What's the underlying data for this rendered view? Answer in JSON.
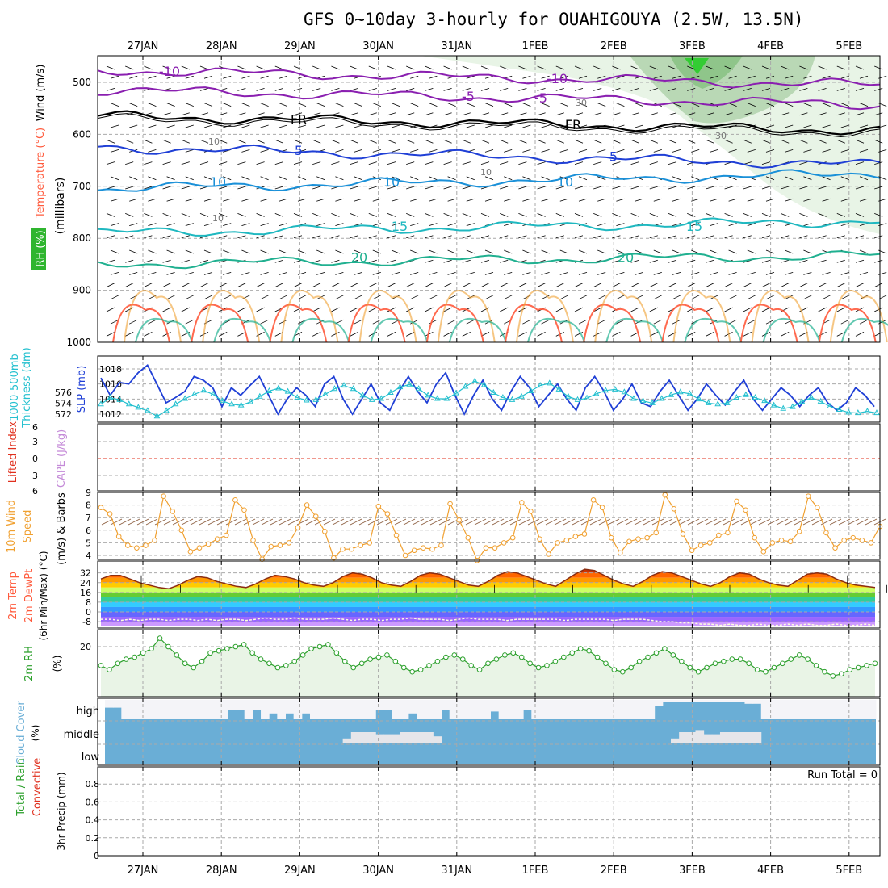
{
  "title": "GFS 0~10day 3-hourly for OUAHIGOUYA (2.5W, 13.5N)",
  "dates": [
    "27JAN",
    "28JAN",
    "29JAN",
    "30JAN",
    "31JAN",
    "1FEB",
    "2FEB",
    "3FEB",
    "4FEB",
    "5FEB"
  ],
  "colors": {
    "grid": "#a9a9a9",
    "rh": "#2fb52f",
    "temp": "#ff5a3c",
    "wind": "#000000",
    "thickness": "#23c0cf",
    "slp": "#1f3fd6",
    "lifted": "#e0301e",
    "cape": "#c48ad8",
    "wind10": "#f0a030",
    "rh2m": "#2ca02c",
    "cloud": "#6aaed6",
    "cloud_clear": "#f4f4f8",
    "precip_total": "#2ca02c",
    "precip_conv": "#e0301e"
  },
  "chart_data": [
    {
      "panel": "upper_air",
      "type": "heatmap",
      "ylabel_parts": [
        "RH (%)",
        "Temperature (°C)",
        "Wind (m/s)",
        "(millibars)"
      ],
      "y_ticks": [
        500,
        600,
        700,
        800,
        900,
        1000
      ],
      "ylim": [
        1000,
        450
      ],
      "freezing_label": "FR",
      "temperature_contours": [
        {
          "label": "-10",
          "level_mb": 477,
          "color": "#8a1fb0"
        },
        {
          "label": "-5",
          "level_mb": 515,
          "color": "#8a1fb0"
        },
        {
          "label": "FR",
          "level_mb": 565,
          "color": "#000000"
        },
        {
          "label": "5",
          "level_mb": 625,
          "color": "#1f3fd6"
        },
        {
          "label": "10",
          "level_mb": 705,
          "color": "#1a90d8"
        },
        {
          "label": "15",
          "level_mb": 790,
          "color": "#1fb8c0"
        },
        {
          "label": "20",
          "level_mb": 850,
          "color": "#20b090"
        }
      ],
      "rh_labels": [
        "10",
        "10",
        "10",
        "30",
        "30"
      ]
    },
    {
      "panel": "thickness_slp",
      "type": "line",
      "ylabel_left": "1000-500mb Thickness (dm)",
      "ylabel_right": "SLP (mb)",
      "y_ticks_left": [
        572,
        574,
        576
      ],
      "y_ticks_right": [
        1012,
        1014,
        1016,
        1018
      ],
      "series": [
        {
          "name": "SLP (mb)",
          "values": [
            1016.8,
            1014.5,
            1016.2,
            1016,
            1017.5,
            1018.5,
            1016,
            1013.5,
            1014.2,
            1015,
            1017,
            1016.5,
            1015.5,
            1013,
            1015.5,
            1014.5,
            1015.8,
            1017,
            1014.5,
            1012,
            1014,
            1015.5,
            1014.5,
            1013,
            1016,
            1017,
            1014,
            1012,
            1014,
            1016,
            1013.5,
            1012.5,
            1015,
            1017,
            1015,
            1013.5,
            1016,
            1017.5,
            1014.5,
            1012,
            1014.5,
            1016.5,
            1014,
            1012.5,
            1015,
            1017,
            1015.5,
            1013,
            1014.5,
            1016,
            1014,
            1012.5,
            1015.5,
            1017,
            1015,
            1012.5,
            1014,
            1016,
            1013.5,
            1013,
            1015,
            1016.5,
            1014.5,
            1012.5,
            1014,
            1016,
            1014.5,
            1013.2,
            1015,
            1016.5,
            1014,
            1012.5,
            1014,
            1015.5,
            1014.5,
            1013,
            1014.5,
            1015.5,
            1013.5,
            1012.5,
            1013.5,
            1015.5,
            1014.5,
            1013
          ]
        },
        {
          "name": "Thickness (dm)",
          "values": [
            573.8,
            575,
            574.6,
            573.8,
            573.2,
            572.6,
            571.6,
            572.6,
            573.8,
            574.8,
            575.6,
            576.3,
            575.6,
            574.4,
            573.8,
            573.6,
            574.2,
            575.2,
            576.2,
            576.7,
            576.1,
            575,
            574.5,
            574.6,
            575.6,
            576.6,
            577.2,
            576.6,
            575.4,
            574.6,
            574.8,
            575.9,
            576.9,
            577.4,
            576.6,
            575.4,
            574.8,
            574.8,
            575.8,
            577,
            578,
            577.3,
            575.9,
            575,
            574.6,
            575.2,
            576.2,
            577.2,
            577.6,
            576.5,
            575.2,
            574.6,
            574.9,
            575.7,
            576.3,
            576.5,
            576,
            574.8,
            574.4,
            574,
            574.8,
            575.5,
            576,
            575.7,
            574.7,
            574,
            573.8,
            574,
            575,
            575.5,
            575,
            574.4,
            573.6,
            573,
            573.3,
            574.3,
            575,
            574.3,
            573.4,
            572.8,
            572.3,
            572.2,
            572.5,
            572.2
          ]
        }
      ]
    },
    {
      "panel": "lifted_cape",
      "type": "line",
      "ylabel_parts": [
        "Lifted Index",
        "CAPE (J/kg)"
      ],
      "y_ticks": [
        "6",
        "3",
        "0",
        "3",
        "6"
      ],
      "series": [
        {
          "name": "Lifted Index",
          "values": [
            0
          ]
        }
      ]
    },
    {
      "panel": "wind10m",
      "type": "line",
      "ylabel_parts": [
        "10m Wind",
        "Speed",
        "(m/s) & Barbs"
      ],
      "y_ticks": [
        4,
        5,
        6,
        7,
        8,
        9
      ],
      "ylim": [
        3.5,
        9
      ],
      "series": [
        {
          "name": "10m Wind Speed",
          "values": [
            7.8,
            7.3,
            5.5,
            4.8,
            4.6,
            4.8,
            5.2,
            8.7,
            7.5,
            6,
            4.3,
            4.6,
            4.9,
            5.3,
            5.6,
            8.4,
            7.6,
            5.2,
            3.7,
            4.7,
            4.8,
            5,
            6.2,
            8,
            7.1,
            5.9,
            3.8,
            4.5,
            4.5,
            4.8,
            5,
            7.9,
            7.3,
            5.6,
            4,
            4.4,
            4.6,
            4.5,
            4.8,
            8.1,
            6.8,
            5.4,
            3.6,
            4.6,
            4.6,
            5,
            5.4,
            8.2,
            7.5,
            5.3,
            4.1,
            5,
            5.2,
            5.5,
            5.7,
            8.4,
            7.8,
            5.4,
            4.2,
            5.1,
            5.3,
            5.4,
            5.8,
            8.8,
            7.7,
            5.7,
            4.4,
            4.8,
            5,
            5.6,
            5.8,
            8.3,
            7.6,
            5.4,
            4.3,
            5,
            5.2,
            5.1,
            5.9,
            8.7,
            7.8,
            5.8,
            4.6,
            5.2,
            5.4,
            5.2,
            5,
            6.3
          ]
        }
      ]
    },
    {
      "panel": "temp2m",
      "type": "area",
      "ylabel_parts": [
        "2m Temp",
        "2m DewPt",
        "(6hr Min/Max) (°C)"
      ],
      "y_ticks": [
        -8,
        0,
        8,
        16,
        24,
        32
      ],
      "ylim": [
        -12,
        38
      ],
      "series": [
        {
          "name": "2m Temp",
          "values": [
            27,
            30,
            30,
            27,
            24,
            22,
            20,
            19,
            22,
            26,
            29,
            28,
            25,
            23,
            21,
            20,
            23,
            27,
            30,
            29,
            27,
            24,
            22,
            21,
            24,
            29,
            32,
            31,
            28,
            24,
            22,
            21,
            25,
            30,
            32,
            31,
            28,
            25,
            22,
            21,
            25,
            30,
            33,
            32,
            29,
            26,
            23,
            21,
            26,
            31,
            35,
            34,
            30,
            26,
            23,
            21,
            25,
            30,
            33,
            32,
            29,
            26,
            23,
            21,
            24,
            29,
            32,
            31,
            27,
            24,
            22,
            21,
            26,
            31,
            32,
            31,
            27,
            24,
            22,
            21,
            20
          ]
        },
        {
          "name": "2m DewPt",
          "values": [
            -6,
            -6,
            -7,
            -6,
            -7,
            -6,
            -6,
            -7,
            -6,
            -6,
            -7,
            -6,
            -7,
            -6,
            -6,
            -7,
            -6,
            -5,
            -6,
            -6,
            -5,
            -6,
            -6,
            -6,
            -5,
            -6,
            -7,
            -6,
            -6,
            -7,
            -6,
            -6,
            -5,
            -6,
            -6,
            -6,
            -7,
            -6,
            -5,
            -6,
            -6,
            -6,
            -7,
            -6,
            -6,
            -6,
            -6,
            -6,
            -7,
            -6,
            -6,
            -6,
            -6,
            -7,
            -6,
            -6,
            -6,
            -7,
            -8,
            -8,
            -9,
            -9,
            -10,
            -10,
            -11,
            -10,
            -11,
            -11,
            -10,
            -11,
            -11,
            -10,
            -11,
            -10,
            -11,
            -11,
            -10,
            -11,
            -11,
            -10,
            -11
          ]
        }
      ]
    },
    {
      "panel": "rh2m",
      "type": "line",
      "ylabel_parts": [
        "2m RH",
        "(%)"
      ],
      "y_ticks": [
        20
      ],
      "ylim": [
        0,
        27
      ],
      "series": [
        {
          "name": "2m RH",
          "values": [
            11,
            9,
            12,
            14,
            15,
            17,
            19,
            24,
            20,
            16,
            12,
            10,
            13,
            17,
            18,
            19,
            20,
            21,
            17,
            14,
            12,
            10,
            11,
            13,
            16,
            19,
            20,
            21,
            17,
            13,
            10,
            12,
            14,
            15,
            16,
            13,
            10,
            8,
            9,
            11,
            13,
            15,
            16,
            14,
            11,
            9,
            12,
            14,
            16,
            17,
            15,
            12,
            10,
            11,
            13,
            15,
            17,
            19,
            18,
            15,
            12,
            9,
            8,
            10,
            13,
            15,
            17,
            19,
            16,
            13,
            10,
            8,
            10,
            12,
            13,
            14,
            14,
            12,
            9,
            8,
            10,
            12,
            14,
            16,
            14,
            11,
            8,
            6,
            7,
            9,
            10,
            11,
            12
          ]
        }
      ]
    },
    {
      "panel": "cloud_cover",
      "type": "area",
      "ylabel_parts": [
        "Cloud Cover",
        "(%)"
      ],
      "levels": [
        "high",
        "middle",
        "low"
      ],
      "series": [
        {
          "name": "high",
          "values": [
            60,
            60,
            0,
            0,
            0,
            0,
            0,
            0,
            0,
            0,
            0,
            0,
            0,
            0,
            0,
            50,
            50,
            0,
            50,
            0,
            30,
            0,
            30,
            0,
            30,
            0,
            0,
            0,
            0,
            0,
            0,
            0,
            0,
            50,
            50,
            0,
            0,
            30,
            0,
            0,
            0,
            50,
            0,
            0,
            0,
            0,
            0,
            40,
            0,
            0,
            0,
            50,
            0,
            0,
            0,
            0,
            0,
            0,
            0,
            0,
            0,
            0,
            0,
            0,
            0,
            0,
            0,
            70,
            90,
            90,
            90,
            90,
            90,
            90,
            90,
            90,
            90,
            90,
            80,
            80,
            0,
            0,
            0,
            0,
            0,
            0,
            0,
            0,
            0,
            0,
            0,
            0,
            0,
            0
          ]
        },
        {
          "name": "middle",
          "values": [
            0,
            0,
            0,
            0,
            0,
            0,
            0,
            0,
            0,
            0,
            0,
            0,
            0,
            0,
            0,
            0,
            0,
            0,
            0,
            0,
            0,
            0,
            0,
            0,
            0,
            0,
            0,
            0,
            0,
            20,
            50,
            50,
            50,
            40,
            40,
            40,
            50,
            50,
            50,
            50,
            30,
            0,
            0,
            0,
            0,
            0,
            0,
            0,
            0,
            0,
            0,
            0,
            0,
            0,
            0,
            0,
            0,
            0,
            0,
            0,
            0,
            0,
            0,
            0,
            0,
            0,
            0,
            0,
            0,
            20,
            50,
            50,
            60,
            40,
            40,
            50,
            50,
            50,
            50,
            50,
            0,
            0,
            0,
            0,
            0,
            0,
            0,
            0,
            0,
            0,
            0,
            0,
            0,
            0
          ]
        },
        {
          "name": "low",
          "values": [
            0
          ]
        }
      ]
    },
    {
      "panel": "precip3hr",
      "type": "bar",
      "ylabel_parts": [
        "Total / Rain",
        "Convective",
        "3hr Precip (mm)"
      ],
      "y_ticks": [
        0,
        0.2,
        0.4,
        0.6,
        0.8
      ],
      "ylim": [
        0,
        1
      ],
      "annotation": "Run Total = 0",
      "series": [
        {
          "name": "Total / Rain",
          "values": [
            0
          ]
        },
        {
          "name": "Convective",
          "values": [
            0
          ]
        }
      ]
    }
  ]
}
